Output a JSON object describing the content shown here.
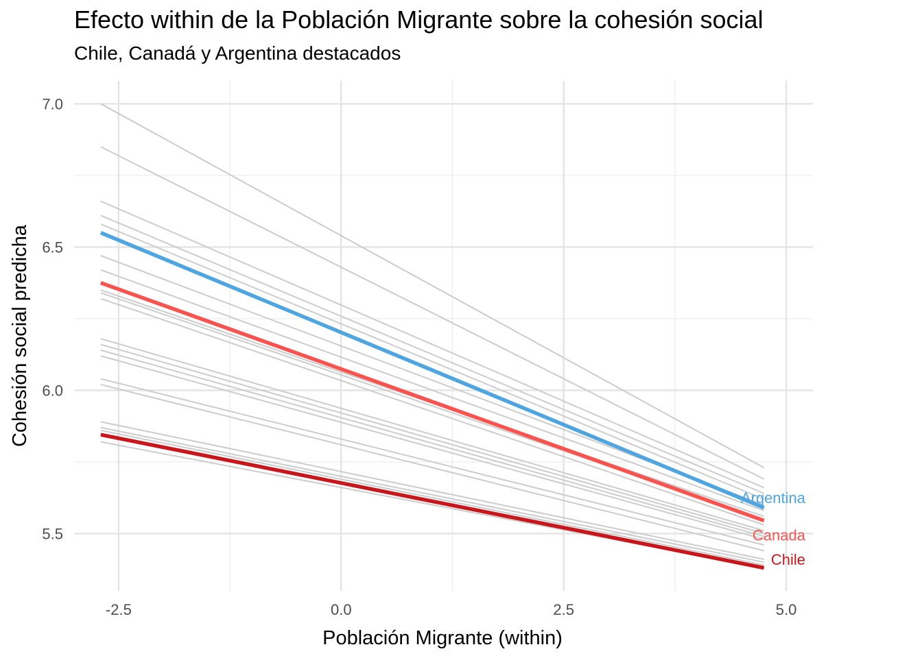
{
  "chart_data": {
    "type": "line",
    "title": "Efecto within de la Población Migrante sobre la cohesión social",
    "subtitle": "Chile, Canadá y Argentina destacados",
    "xlabel": "Población Migrante (within)",
    "ylabel": "Cohesión social predicha",
    "xlim": [
      -3.0,
      5.3
    ],
    "ylim": [
      5.3,
      7.08
    ],
    "x_ticks": [
      -2.5,
      0.0,
      2.5,
      5.0
    ],
    "x_tick_labels": [
      "-2.5",
      "0.0",
      "2.5",
      "5.0"
    ],
    "y_ticks": [
      5.5,
      6.0,
      6.5,
      7.0
    ],
    "y_tick_labels": [
      "5.5",
      "6.0",
      "6.5",
      "7.0"
    ],
    "grid": true,
    "x_range": [
      -2.7,
      4.75
    ],
    "background_series": [
      {
        "y": [
          7.0,
          5.73
        ]
      },
      {
        "y": [
          6.85,
          5.69
        ]
      },
      {
        "y": [
          6.66,
          5.66
        ]
      },
      {
        "y": [
          6.61,
          5.64
        ]
      },
      {
        "y": [
          6.58,
          5.62
        ]
      },
      {
        "y": [
          6.47,
          5.6
        ]
      },
      {
        "y": [
          6.42,
          5.58
        ]
      },
      {
        "y": [
          6.35,
          5.56
        ]
      },
      {
        "y": [
          6.34,
          5.55
        ]
      },
      {
        "y": [
          6.32,
          5.53
        ]
      },
      {
        "y": [
          6.18,
          5.51
        ]
      },
      {
        "y": [
          6.16,
          5.5
        ]
      },
      {
        "y": [
          6.14,
          5.49
        ]
      },
      {
        "y": [
          6.12,
          5.48
        ]
      },
      {
        "y": [
          6.04,
          5.46
        ]
      },
      {
        "y": [
          6.02,
          5.44
        ]
      },
      {
        "y": [
          5.89,
          5.41
        ]
      },
      {
        "y": [
          5.87,
          5.4
        ]
      },
      {
        "y": [
          5.86,
          5.39
        ]
      },
      {
        "y": [
          5.82,
          5.38
        ]
      }
    ],
    "series": [
      {
        "name": "Argentina",
        "color": "#4ea5e0",
        "y": [
          6.55,
          5.59
        ]
      },
      {
        "name": "Canada",
        "color": "#f8534f",
        "y": [
          6.375,
          5.545
        ]
      },
      {
        "name": "Chile",
        "color": "#c8171c",
        "y": [
          5.845,
          5.38
        ]
      }
    ],
    "background_color": "#cccccc"
  }
}
